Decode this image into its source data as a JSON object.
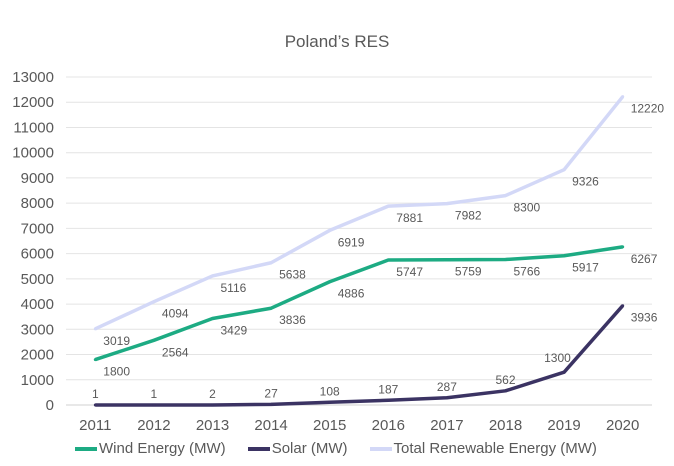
{
  "chart_data": {
    "type": "line",
    "title": "Poland’s RES",
    "xlabel": "",
    "ylabel": "",
    "categories": [
      "2011",
      "2012",
      "2013",
      "2014",
      "2015",
      "2016",
      "2017",
      "2018",
      "2019",
      "2020"
    ],
    "ylim": [
      0,
      13000
    ],
    "yticks": [
      0,
      1000,
      2000,
      3000,
      4000,
      5000,
      6000,
      7000,
      8000,
      9000,
      10000,
      11000,
      12000,
      13000
    ],
    "grid": true,
    "legend_position": "bottom",
    "series": [
      {
        "name": "Wind Energy (MW)",
        "color": "#1dab83",
        "values": [
          1800,
          2564,
          3429,
          3836,
          4886,
          5747,
          5759,
          5766,
          5917,
          6267
        ]
      },
      {
        "name": "Solar (MW)",
        "color": "#3b3363",
        "values": [
          1,
          1,
          2,
          27,
          108,
          187,
          287,
          562,
          1300,
          3936
        ]
      },
      {
        "name": "Total Renewable Energy (MW)",
        "color": "#d3d8f7",
        "values": [
          3019,
          4094,
          5116,
          5638,
          6919,
          7881,
          7982,
          8300,
          9326,
          12220
        ]
      }
    ]
  }
}
